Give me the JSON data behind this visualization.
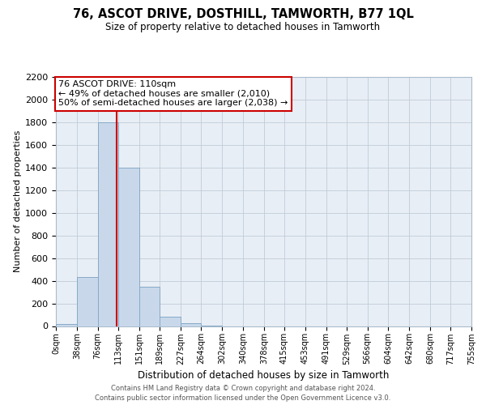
{
  "title": "76, ASCOT DRIVE, DOSTHILL, TAMWORTH, B77 1QL",
  "subtitle": "Size of property relative to detached houses in Tamworth",
  "xlabel": "Distribution of detached houses by size in Tamworth",
  "ylabel": "Number of detached properties",
  "bin_edges": [
    0,
    38,
    76,
    113,
    151,
    189,
    227,
    264,
    302,
    340,
    378,
    415,
    453,
    491,
    529,
    566,
    604,
    642,
    680,
    717,
    755
  ],
  "bar_heights": [
    20,
    430,
    1800,
    1400,
    350,
    80,
    25,
    5,
    0,
    0,
    0,
    0,
    0,
    0,
    0,
    0,
    0,
    0,
    0,
    0
  ],
  "bar_color": "#c8d8ea",
  "bar_edgecolor": "#85aac8",
  "property_size": 110,
  "vline_color": "#cc0000",
  "annotation_line1": "76 ASCOT DRIVE: 110sqm",
  "annotation_line2": "← 49% of detached houses are smaller (2,010)",
  "annotation_line3": "50% of semi-detached houses are larger (2,038) →",
  "annotation_bbox_edgecolor": "#cc0000",
  "annotation_bbox_facecolor": "#ffffff",
  "ylim": [
    0,
    2200
  ],
  "yticks": [
    0,
    200,
    400,
    600,
    800,
    1000,
    1200,
    1400,
    1600,
    1800,
    2000,
    2200
  ],
  "grid_color": "#c0ccd8",
  "bg_color": "#e8eef5",
  "footer_line1": "Contains HM Land Registry data © Crown copyright and database right 2024.",
  "footer_line2": "Contains public sector information licensed under the Open Government Licence v3.0."
}
